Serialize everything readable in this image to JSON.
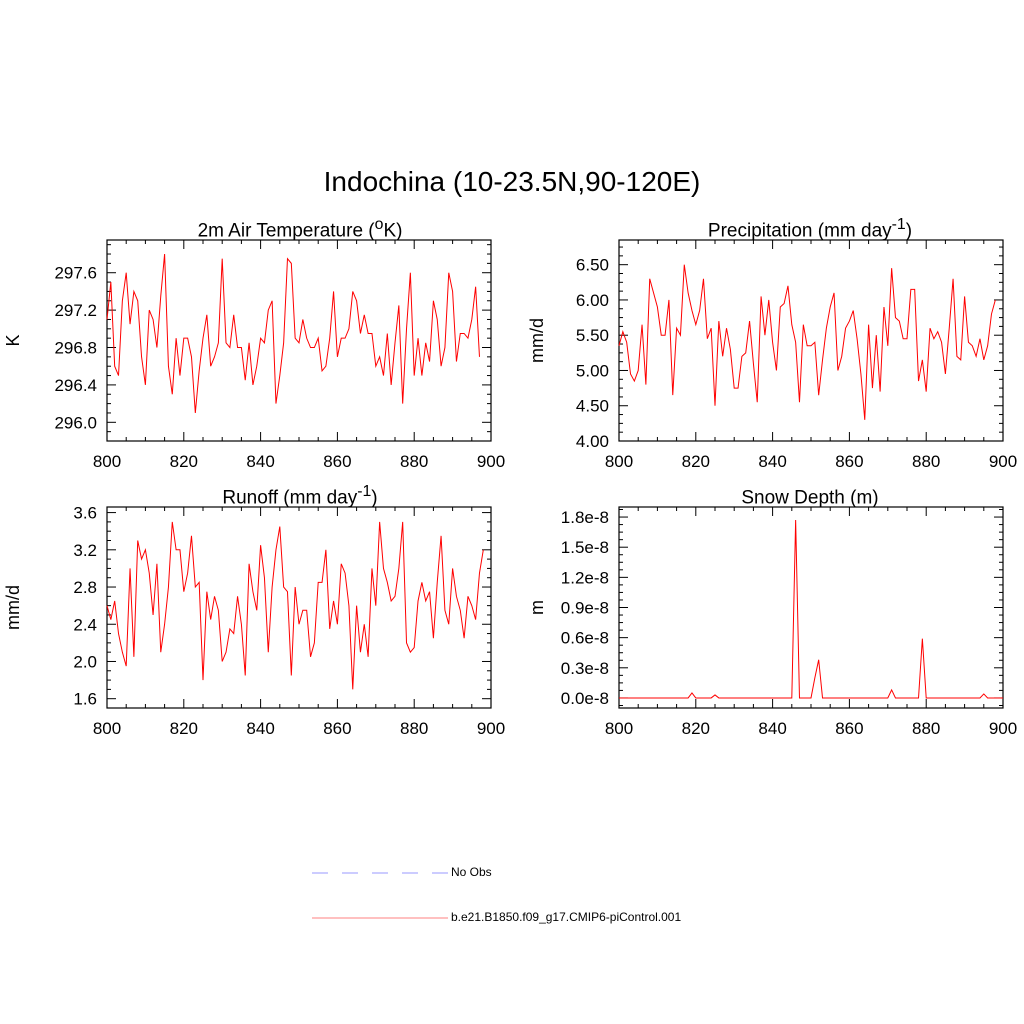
{
  "title": "Indochina (10-23.5N,90-120E)",
  "legend": [
    {
      "label": "No Obs",
      "color": "#9999ff",
      "dash": "dashed"
    },
    {
      "label": "b.e21.B1850.f09_g17.CMIP6-piControl.001",
      "color": "#ff8080",
      "dash": "solid"
    }
  ],
  "chart_data": [
    {
      "type": "line",
      "id": "temp",
      "title": "2m Air Temperature (",
      "title_sup": "o",
      "title_tail": "K)",
      "ylabel": "K",
      "xlim": [
        800,
        900
      ],
      "ylim": [
        295.8,
        297.95
      ],
      "xticks": [
        "800",
        "820",
        "840",
        "860",
        "880",
        "900"
      ],
      "yticks": [
        "296.0",
        "296.4",
        "296.8",
        "297.2",
        "297.6"
      ],
      "series": [
        {
          "name": "b.e21.B1850.f09_g17.CMIP6-piControl.001",
          "color": "#ff0000",
          "values": [
            297.1,
            297.5,
            296.6,
            296.5,
            297.3,
            297.6,
            297.05,
            297.4,
            297.3,
            296.7,
            296.4,
            297.2,
            297.1,
            296.8,
            297.35,
            297.8,
            296.6,
            296.3,
            296.9,
            296.5,
            296.9,
            296.9,
            296.7,
            296.1,
            296.55,
            296.9,
            297.15,
            296.6,
            296.7,
            296.85,
            297.75,
            296.85,
            296.8,
            297.15,
            296.8,
            296.8,
            296.45,
            296.85,
            296.4,
            296.6,
            296.9,
            296.85,
            297.2,
            297.3,
            296.2,
            296.5,
            296.85,
            297.75,
            297.7,
            296.9,
            296.85,
            297.1,
            296.9,
            296.8,
            296.8,
            296.9,
            296.55,
            296.6,
            296.9,
            297.4,
            296.7,
            296.9,
            296.9,
            297.0,
            297.4,
            297.3,
            296.95,
            297.15,
            296.95,
            296.95,
            296.6,
            296.7,
            296.5,
            296.95,
            296.4,
            296.85,
            297.25,
            296.2,
            297.0,
            297.6,
            296.5,
            296.9,
            296.5,
            296.85,
            296.65,
            297.3,
            297.1,
            296.6,
            296.8,
            297.6,
            297.4,
            296.65,
            296.95,
            296.95,
            296.9,
            297.1,
            297.45,
            296.7
          ]
        }
      ]
    },
    {
      "type": "line",
      "id": "precip",
      "title": "Precipitation (mm day",
      "title_sup": "-1",
      "title_tail": ")",
      "ylabel": "mm/d",
      "xlim": [
        800,
        900
      ],
      "ylim": [
        4.0,
        6.85
      ],
      "xticks": [
        "800",
        "820",
        "840",
        "860",
        "880",
        "900"
      ],
      "yticks": [
        "4.00",
        "4.50",
        "5.00",
        "5.50",
        "6.00",
        "6.50"
      ],
      "series": [
        {
          "name": "b.e21.B1850.f09_g17.CMIP6-piControl.001",
          "color": "#ff0000",
          "values": [
            5.35,
            5.55,
            5.4,
            4.95,
            4.85,
            5.0,
            5.65,
            4.8,
            6.3,
            6.1,
            5.9,
            5.5,
            5.5,
            6.0,
            4.65,
            5.6,
            5.5,
            6.5,
            6.1,
            5.85,
            5.65,
            5.85,
            6.3,
            5.45,
            5.6,
            4.5,
            5.7,
            5.2,
            5.6,
            5.3,
            4.75,
            4.75,
            5.2,
            5.25,
            5.7,
            5.1,
            4.55,
            6.05,
            5.5,
            6.0,
            5.4,
            5.0,
            5.9,
            5.95,
            6.2,
            5.65,
            5.4,
            4.55,
            5.65,
            5.35,
            5.35,
            5.4,
            4.65,
            5.15,
            5.6,
            5.9,
            6.1,
            5.0,
            5.2,
            5.6,
            5.7,
            5.85,
            5.45,
            4.95,
            4.3,
            5.65,
            4.75,
            5.5,
            4.7,
            5.9,
            5.35,
            6.45,
            5.75,
            5.7,
            5.45,
            5.45,
            6.15,
            6.15,
            4.85,
            5.15,
            4.7,
            5.6,
            5.45,
            5.55,
            5.4,
            4.95,
            5.6,
            6.3,
            5.2,
            5.15,
            6.05,
            5.4,
            5.35,
            5.2,
            5.45,
            5.15,
            5.35,
            5.8,
            6.0
          ]
        }
      ]
    },
    {
      "type": "line",
      "id": "runoff",
      "title": "Runoff (mm day",
      "title_sup": "-1",
      "title_tail": ")",
      "ylabel": "mm/d",
      "xlim": [
        800,
        900
      ],
      "ylim": [
        1.5,
        3.66
      ],
      "xticks": [
        "800",
        "820",
        "840",
        "860",
        "880",
        "900"
      ],
      "yticks": [
        "1.6",
        "2.0",
        "2.4",
        "2.8",
        "3.2",
        "3.6"
      ],
      "series": [
        {
          "name": "b.e21.B1850.f09_g17.CMIP6-piControl.001",
          "color": "#ff0000",
          "values": [
            2.6,
            2.45,
            2.65,
            2.3,
            2.1,
            1.95,
            3.0,
            2.05,
            3.3,
            3.1,
            3.2,
            2.95,
            2.5,
            3.05,
            2.1,
            2.4,
            2.8,
            3.5,
            3.2,
            3.2,
            2.75,
            2.95,
            3.35,
            2.8,
            2.85,
            1.8,
            2.75,
            2.45,
            2.7,
            2.55,
            2.0,
            2.1,
            2.35,
            2.3,
            2.7,
            2.4,
            1.85,
            3.05,
            2.75,
            2.55,
            3.25,
            2.9,
            2.1,
            2.8,
            3.2,
            3.45,
            2.8,
            2.75,
            1.85,
            2.8,
            2.4,
            2.55,
            2.55,
            2.05,
            2.2,
            2.85,
            2.85,
            3.2,
            2.35,
            2.65,
            2.4,
            3.05,
            2.95,
            2.6,
            1.7,
            2.6,
            2.1,
            2.4,
            2.05,
            3.0,
            2.6,
            3.5,
            3.0,
            2.85,
            2.65,
            2.7,
            3.0,
            3.5,
            2.2,
            2.1,
            2.15,
            2.65,
            2.85,
            2.65,
            2.75,
            2.25,
            2.85,
            3.35,
            2.55,
            2.4,
            3.0,
            2.7,
            2.55,
            2.25,
            2.7,
            2.6,
            2.45,
            2.95,
            3.2
          ]
        }
      ]
    },
    {
      "type": "line",
      "id": "snow",
      "title": "Snow Depth (m)",
      "title_sup": "",
      "title_tail": "",
      "ylabel": "m",
      "xlim": [
        800,
        900
      ],
      "ylim": [
        -1e-09,
        1.9e-08
      ],
      "xticks": [
        "800",
        "820",
        "840",
        "860",
        "880",
        "900"
      ],
      "yticks": [
        "0.0e-8",
        "0.3e-8",
        "0.6e-8",
        "0.9e-8",
        "1.2e-8",
        "1.5e-8",
        "1.8e-8"
      ],
      "series": [
        {
          "name": "b.e21.B1850.f09_g17.CMIP6-piControl.001",
          "color": "#ff0000",
          "values": [
            0,
            0,
            0,
            0,
            0,
            0,
            0,
            0,
            0,
            0,
            0,
            0,
            0,
            0,
            0,
            0,
            0,
            0,
            0,
            5e-10,
            0,
            0,
            0,
            0,
            0,
            3e-10,
            0,
            0,
            0,
            0,
            0,
            0,
            0,
            0,
            0,
            0,
            0,
            0,
            0,
            0,
            0,
            0,
            0,
            0,
            0,
            0,
            1.77e-08,
            0,
            0,
            0,
            0,
            2e-09,
            3.8e-09,
            0,
            0,
            0,
            0,
            0,
            0,
            0,
            0,
            0,
            0,
            0,
            0,
            0,
            0,
            0,
            0,
            0,
            0,
            8e-10,
            0,
            0,
            0,
            0,
            0,
            0,
            0,
            5.9e-09,
            0,
            0,
            0,
            0,
            0,
            0,
            0,
            0,
            0,
            0,
            0,
            0,
            0,
            0,
            0,
            4e-10,
            0,
            0,
            0,
            0,
            0
          ]
        }
      ]
    }
  ]
}
